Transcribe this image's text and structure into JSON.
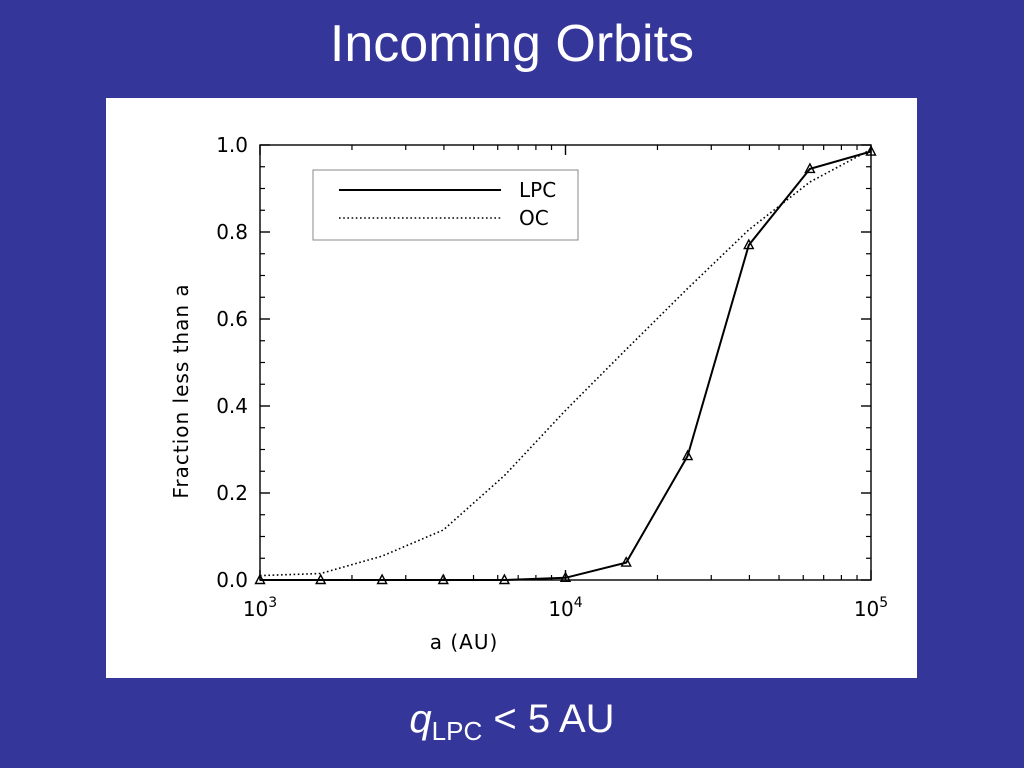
{
  "slide": {
    "title": "Incoming Orbits",
    "caption_var": "q",
    "caption_sub": "LPC",
    "caption_rest": " < 5 AU"
  },
  "chart_data": {
    "type": "line",
    "xlabel": "a (AU)",
    "ylabel": "Fraction less than a",
    "x_scale": "log",
    "xlim": [
      1000,
      100000
    ],
    "ylim": [
      0,
      1
    ],
    "x_ticks": [
      {
        "base": "10",
        "exp": "3",
        "value": 1000
      },
      {
        "base": "10",
        "exp": "4",
        "value": 10000
      },
      {
        "base": "10",
        "exp": "5",
        "value": 100000
      }
    ],
    "y_ticks": [
      {
        "label": "0.0",
        "value": 0
      },
      {
        "label": "0.2",
        "value": 0.2
      },
      {
        "label": "0.4",
        "value": 0.4
      },
      {
        "label": "0.6",
        "value": 0.6
      },
      {
        "label": "0.8",
        "value": 0.8
      },
      {
        "label": "1.0",
        "value": 1.0
      }
    ],
    "legend_position": "top-left",
    "series": [
      {
        "name": "LPC",
        "style": "solid",
        "marker": "triangle",
        "x": [
          1000,
          1580,
          2510,
          3980,
          6310,
          10000,
          15800,
          25100,
          39800,
          63100,
          100000
        ],
        "y": [
          0,
          0,
          0,
          0,
          0,
          0.005,
          0.04,
          0.285,
          0.77,
          0.945,
          0.985
        ]
      },
      {
        "name": "OC",
        "style": "dotted",
        "x": [
          1000,
          1580,
          2510,
          3980,
          6310,
          10000,
          15800,
          25100,
          39800,
          63100,
          100000
        ],
        "y": [
          0.01,
          0.015,
          0.055,
          0.115,
          0.24,
          0.39,
          0.53,
          0.67,
          0.805,
          0.915,
          0.99
        ]
      }
    ]
  }
}
